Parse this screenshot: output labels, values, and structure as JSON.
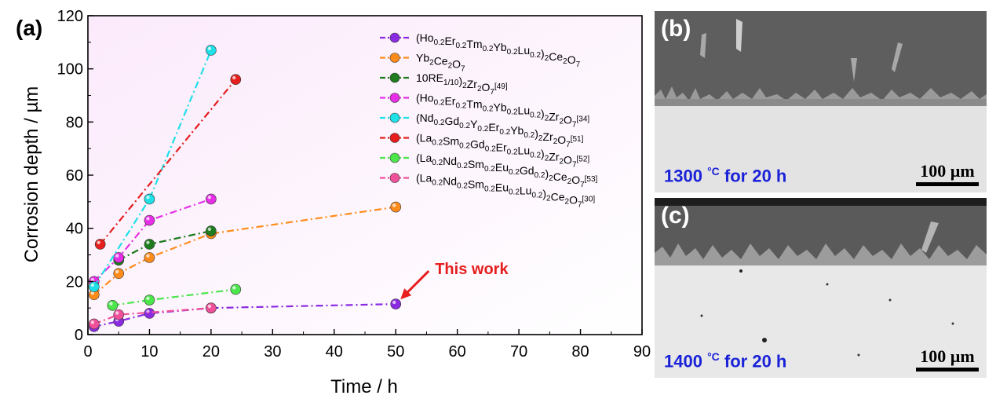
{
  "chart_data": {
    "type": "line",
    "panel_label": "(a)",
    "xlabel": "Time / h",
    "ylabel": "Corrosion depth / µm",
    "xlim": [
      0,
      90
    ],
    "ylim": [
      0,
      120
    ],
    "xticks": [
      0,
      10,
      20,
      30,
      40,
      50,
      60,
      70,
      80,
      90
    ],
    "yticks": [
      0,
      20,
      40,
      60,
      80,
      100,
      120
    ],
    "grid": false,
    "legend_position": "top-right",
    "series": [
      {
        "name": "(Ho0.2Er0.2Tm0.2Yb0.2Lu0.2)2Ce2O7",
        "ref": "",
        "color": "#8a2be2",
        "label_parts": [
          [
            "(Ho",
            ""
          ],
          [
            "0.2",
            "sub"
          ],
          [
            "Er",
            ""
          ],
          [
            "0.2",
            "sub"
          ],
          [
            "Tm",
            ""
          ],
          [
            "0.2",
            "sub"
          ],
          [
            "Yb",
            ""
          ],
          [
            "0.2",
            "sub"
          ],
          [
            "Lu",
            ""
          ],
          [
            "0.2",
            "sub"
          ],
          [
            ")",
            ""
          ],
          [
            "2",
            "sub"
          ],
          [
            "Ce",
            ""
          ],
          [
            "2",
            "sub"
          ],
          [
            "O",
            ""
          ],
          [
            "7",
            "sub"
          ]
        ],
        "x": [
          1,
          5,
          10,
          20,
          50
        ],
        "y": [
          3,
          5,
          8,
          10,
          11.5
        ]
      },
      {
        "name": "Yb2Ce2O7",
        "ref": "",
        "color": "#ff8c1a",
        "label_parts": [
          [
            "Yb",
            ""
          ],
          [
            "2",
            "sub"
          ],
          [
            "Ce",
            ""
          ],
          [
            "2",
            "sub"
          ],
          [
            "O",
            ""
          ],
          [
            "7",
            "sub"
          ]
        ],
        "x": [
          1,
          5,
          10,
          20,
          50
        ],
        "y": [
          15,
          23,
          29,
          38,
          48
        ]
      },
      {
        "name": "10RE1/10)2Zr2O7",
        "ref": "[49]",
        "color": "#1e7b1e",
        "label_parts": [
          [
            "10RE",
            ""
          ],
          [
            "1/10",
            "sub"
          ],
          [
            ")",
            ""
          ],
          [
            "2",
            "sub"
          ],
          [
            "Zr",
            ""
          ],
          [
            "2",
            "sub"
          ],
          [
            "O",
            ""
          ],
          [
            "7",
            "sub"
          ]
        ],
        "x": [
          5,
          10,
          20
        ],
        "y": [
          28,
          34,
          39
        ]
      },
      {
        "name": "(Ho0.2Er0.2Tm0.2Yb0.2Lu0.2)2Zr2O7",
        "ref": "[34]",
        "color": "#e62ee6",
        "label_parts": [
          [
            "(Ho",
            ""
          ],
          [
            "0.2",
            "sub"
          ],
          [
            "Er",
            ""
          ],
          [
            "0.2",
            "sub"
          ],
          [
            "Tm",
            ""
          ],
          [
            "0.2",
            "sub"
          ],
          [
            "Yb",
            ""
          ],
          [
            "0.2",
            "sub"
          ],
          [
            "Lu",
            ""
          ],
          [
            "0.2",
            "sub"
          ],
          [
            ")",
            ""
          ],
          [
            "2",
            "sub"
          ],
          [
            "Zr",
            ""
          ],
          [
            "2",
            "sub"
          ],
          [
            "O",
            ""
          ],
          [
            "7",
            "sub"
          ]
        ],
        "x": [
          1,
          5,
          10,
          20
        ],
        "y": [
          20,
          29,
          43,
          51
        ]
      },
      {
        "name": "(Nd0.2Gd0.2Y0.2Er0.2Yb0.2)2Zr2O7",
        "ref": "[51]",
        "color": "#1ee0e6",
        "label_parts": [
          [
            "(Nd",
            ""
          ],
          [
            "0.2",
            "sub"
          ],
          [
            "Gd",
            ""
          ],
          [
            "0.2",
            "sub"
          ],
          [
            "Y",
            ""
          ],
          [
            "0.2",
            "sub"
          ],
          [
            "Er",
            ""
          ],
          [
            "0.2",
            "sub"
          ],
          [
            "Yb",
            ""
          ],
          [
            "0.2",
            "sub"
          ],
          [
            ")",
            ""
          ],
          [
            "2",
            "sub"
          ],
          [
            "Zr",
            ""
          ],
          [
            "2",
            "sub"
          ],
          [
            "O",
            ""
          ],
          [
            "7",
            "sub"
          ]
        ],
        "x": [
          1,
          10,
          20
        ],
        "y": [
          18,
          51,
          107
        ]
      },
      {
        "name": "(La0.2Sm0.2Gd0.2Er0.2Lu0.2)2Zr2O7",
        "ref": "[52]",
        "color": "#e61e1e",
        "label_parts": [
          [
            "(La",
            ""
          ],
          [
            "0.2",
            "sub"
          ],
          [
            "Sm",
            ""
          ],
          [
            "0.2",
            "sub"
          ],
          [
            "Gd",
            ""
          ],
          [
            "0.2",
            "sub"
          ],
          [
            "Er",
            ""
          ],
          [
            "0.2",
            "sub"
          ],
          [
            "Lu",
            ""
          ],
          [
            "0.2",
            "sub"
          ],
          [
            ")",
            ""
          ],
          [
            "2",
            "sub"
          ],
          [
            "Zr",
            ""
          ],
          [
            "2",
            "sub"
          ],
          [
            "O",
            ""
          ],
          [
            "7",
            "sub"
          ]
        ],
        "x": [
          2,
          24
        ],
        "y": [
          34,
          96
        ]
      },
      {
        "name": "(La0.2Nd0.2Sm0.2Eu0.2Gd0.2)2Ce2O7",
        "ref": "[53]",
        "color": "#4ce64c",
        "label_parts": [
          [
            "(La",
            ""
          ],
          [
            "0.2",
            "sub"
          ],
          [
            "Nd",
            ""
          ],
          [
            "0.2",
            "sub"
          ],
          [
            "Sm",
            ""
          ],
          [
            "0.2",
            "sub"
          ],
          [
            "Eu",
            ""
          ],
          [
            "0.2",
            "sub"
          ],
          [
            "Gd",
            ""
          ],
          [
            "0.2",
            "sub"
          ],
          [
            ")",
            ""
          ],
          [
            "2",
            "sub"
          ],
          [
            "Ce",
            ""
          ],
          [
            "2",
            "sub"
          ],
          [
            "O",
            ""
          ],
          [
            "7",
            "sub"
          ]
        ],
        "x": [
          4,
          10,
          24
        ],
        "y": [
          11,
          13,
          17
        ]
      },
      {
        "name": "(La0.2Nd0.2Sm0.2Eu0.2Lu0.2)2Ce2O7",
        "ref": "[30]",
        "color": "#f0509a",
        "label_parts": [
          [
            "(La",
            ""
          ],
          [
            "0.2",
            "sub"
          ],
          [
            "Nd",
            ""
          ],
          [
            "0.2",
            "sub"
          ],
          [
            "Sm",
            ""
          ],
          [
            "0.2",
            "sub"
          ],
          [
            "Eu",
            ""
          ],
          [
            "0.2",
            "sub"
          ],
          [
            "Lu",
            ""
          ],
          [
            "0.2",
            "sub"
          ],
          [
            ")",
            ""
          ],
          [
            "2",
            "sub"
          ],
          [
            "Ce",
            ""
          ],
          [
            "2",
            "sub"
          ],
          [
            "O",
            ""
          ],
          [
            "7",
            "sub"
          ]
        ],
        "x": [
          1,
          5,
          20
        ],
        "y": [
          4,
          7.5,
          10
        ]
      }
    ],
    "annotation": {
      "text": "This work",
      "color": "#e61e1e",
      "points_to": {
        "x": 50,
        "y": 11.5
      }
    }
  },
  "micrographs": [
    {
      "label": "(b)",
      "condition_prefix": "1300 ",
      "condition_unit": "°C",
      "condition_suffix": " for 20 h",
      "scale": "100 µm"
    },
    {
      "label": "(c)",
      "condition_prefix": "1400 ",
      "condition_unit": "°C",
      "condition_suffix": " for 20 h",
      "scale": "100 µm"
    }
  ],
  "colors": {
    "plot_background": "#fbeefb",
    "condition_text": "#1a22d8"
  }
}
